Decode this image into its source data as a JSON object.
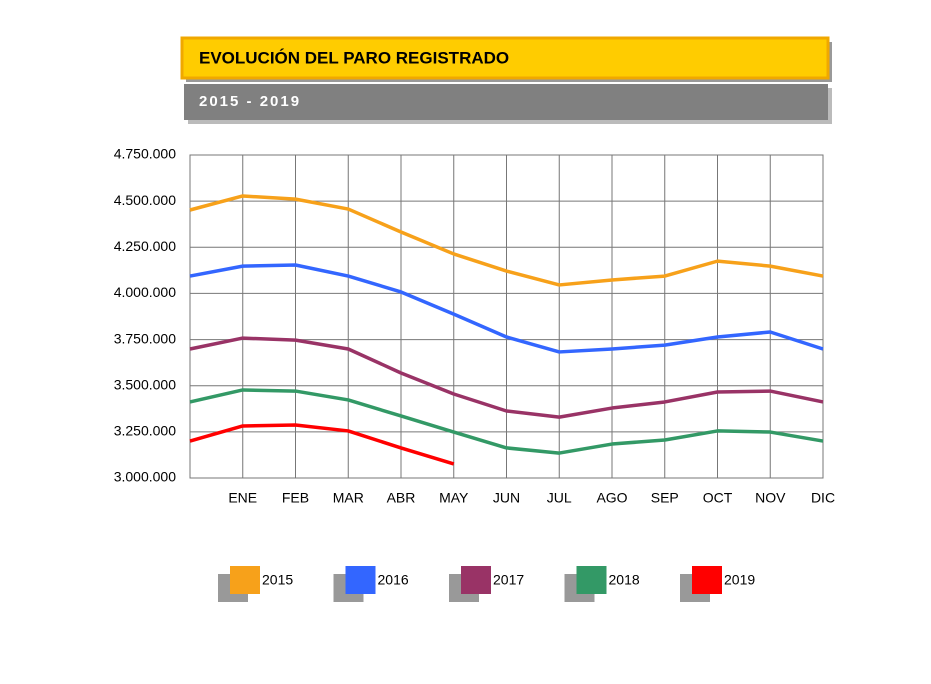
{
  "chart_data": {
    "type": "line",
    "title": "EVOLUCIÓN DEL PARO REGISTRADO",
    "subtitle": "2015 - 2019",
    "categories": [
      null,
      "ENE",
      "FEB",
      "MAR",
      "ABR",
      "MAY",
      "JUN",
      "JUL",
      "AGO",
      "SEP",
      "OCT",
      "NOV",
      "DIC"
    ],
    "series": [
      {
        "name": "2015",
        "color": "#f7a11a",
        "values": [
          4452000,
          4528000,
          4511000,
          4457000,
          4333000,
          4214000,
          4121000,
          4046000,
          4073000,
          4094000,
          4175000,
          4148000,
          4094000
        ]
      },
      {
        "name": "2016",
        "color": "#3366ff",
        "values": [
          4094000,
          4148000,
          4154000,
          4094000,
          4008000,
          3888000,
          3764000,
          3683000,
          3699000,
          3720000,
          3764000,
          3791000,
          3699000
        ]
      },
      {
        "name": "2017",
        "color": "#993366",
        "values": [
          3699000,
          3758000,
          3747000,
          3699000,
          3569000,
          3455000,
          3363000,
          3330000,
          3379000,
          3412000,
          3466000,
          3471000,
          3412000
        ]
      },
      {
        "name": "2018",
        "color": "#339966",
        "values": [
          3412000,
          3477000,
          3471000,
          3423000,
          3336000,
          3249000,
          3163000,
          3135000,
          3184000,
          3206000,
          3255000,
          3249000,
          3200000
        ]
      },
      {
        "name": "2019",
        "color": "#ff0000",
        "values": [
          3200000,
          3282000,
          3287000,
          3255000,
          3163000,
          3076000,
          null,
          null,
          null,
          null,
          null,
          null,
          null
        ]
      }
    ],
    "ylim": [
      3000000,
      4750000
    ],
    "yticks": [
      {
        "value": 3000000,
        "label": "3.000.000"
      },
      {
        "value": 3250000,
        "label": "3.250.000"
      },
      {
        "value": 3500000,
        "label": "3.500.000"
      },
      {
        "value": 3750000,
        "label": "3.750.000"
      },
      {
        "value": 4000000,
        "label": "4.000.000"
      },
      {
        "value": 4250000,
        "label": "4.250.000"
      },
      {
        "value": 4500000,
        "label": "4.500.000"
      },
      {
        "value": 4750000,
        "label": "4.750.000"
      }
    ],
    "grid": true
  }
}
